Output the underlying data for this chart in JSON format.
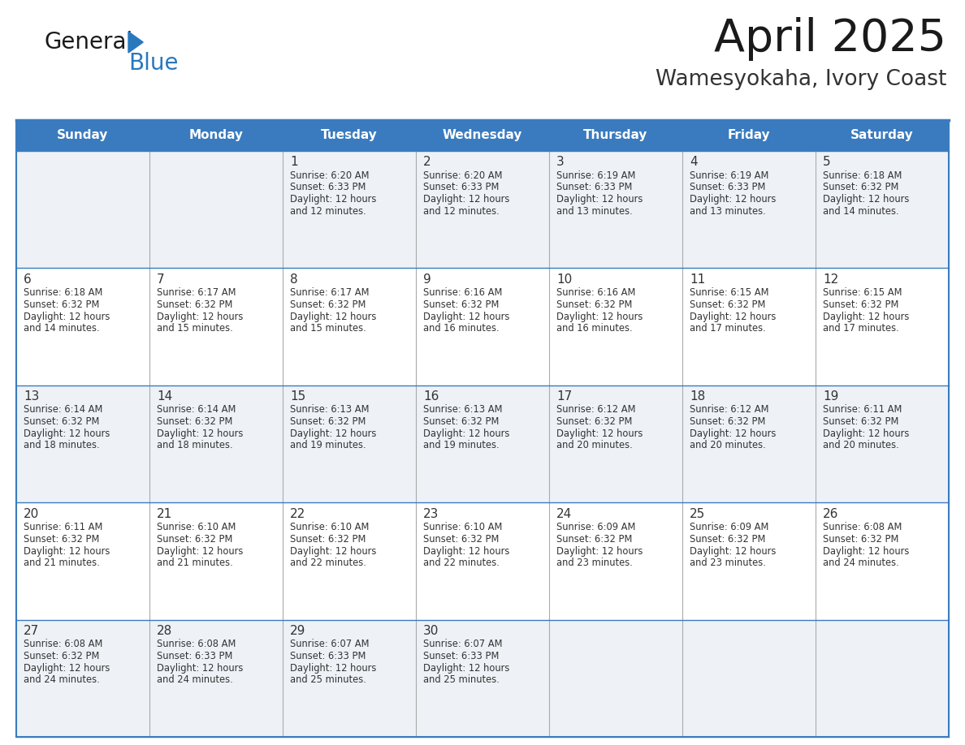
{
  "title": "April 2025",
  "subtitle": "Wamesyokaha, Ivory Coast",
  "days_of_week": [
    "Sunday",
    "Monday",
    "Tuesday",
    "Wednesday",
    "Thursday",
    "Friday",
    "Saturday"
  ],
  "header_bg": "#3a7bbf",
  "header_text": "#ffffff",
  "row_bg_even": "#eef2f7",
  "row_bg_odd": "#ffffff",
  "border_color": "#3a7bbf",
  "divider_color": "#aaaaaa",
  "text_color": "#333333",
  "calendar_data": [
    [
      {
        "day": "",
        "sunrise": "",
        "sunset": "",
        "daylight": ""
      },
      {
        "day": "",
        "sunrise": "",
        "sunset": "",
        "daylight": ""
      },
      {
        "day": "1",
        "sunrise": "6:20 AM",
        "sunset": "6:33 PM",
        "daylight": "12 hours and 12 minutes."
      },
      {
        "day": "2",
        "sunrise": "6:20 AM",
        "sunset": "6:33 PM",
        "daylight": "12 hours and 12 minutes."
      },
      {
        "day": "3",
        "sunrise": "6:19 AM",
        "sunset": "6:33 PM",
        "daylight": "12 hours and 13 minutes."
      },
      {
        "day": "4",
        "sunrise": "6:19 AM",
        "sunset": "6:33 PM",
        "daylight": "12 hours and 13 minutes."
      },
      {
        "day": "5",
        "sunrise": "6:18 AM",
        "sunset": "6:32 PM",
        "daylight": "12 hours and 14 minutes."
      }
    ],
    [
      {
        "day": "6",
        "sunrise": "6:18 AM",
        "sunset": "6:32 PM",
        "daylight": "12 hours and 14 minutes."
      },
      {
        "day": "7",
        "sunrise": "6:17 AM",
        "sunset": "6:32 PM",
        "daylight": "12 hours and 15 minutes."
      },
      {
        "day": "8",
        "sunrise": "6:17 AM",
        "sunset": "6:32 PM",
        "daylight": "12 hours and 15 minutes."
      },
      {
        "day": "9",
        "sunrise": "6:16 AM",
        "sunset": "6:32 PM",
        "daylight": "12 hours and 16 minutes."
      },
      {
        "day": "10",
        "sunrise": "6:16 AM",
        "sunset": "6:32 PM",
        "daylight": "12 hours and 16 minutes."
      },
      {
        "day": "11",
        "sunrise": "6:15 AM",
        "sunset": "6:32 PM",
        "daylight": "12 hours and 17 minutes."
      },
      {
        "day": "12",
        "sunrise": "6:15 AM",
        "sunset": "6:32 PM",
        "daylight": "12 hours and 17 minutes."
      }
    ],
    [
      {
        "day": "13",
        "sunrise": "6:14 AM",
        "sunset": "6:32 PM",
        "daylight": "12 hours and 18 minutes."
      },
      {
        "day": "14",
        "sunrise": "6:14 AM",
        "sunset": "6:32 PM",
        "daylight": "12 hours and 18 minutes."
      },
      {
        "day": "15",
        "sunrise": "6:13 AM",
        "sunset": "6:32 PM",
        "daylight": "12 hours and 19 minutes."
      },
      {
        "day": "16",
        "sunrise": "6:13 AM",
        "sunset": "6:32 PM",
        "daylight": "12 hours and 19 minutes."
      },
      {
        "day": "17",
        "sunrise": "6:12 AM",
        "sunset": "6:32 PM",
        "daylight": "12 hours and 20 minutes."
      },
      {
        "day": "18",
        "sunrise": "6:12 AM",
        "sunset": "6:32 PM",
        "daylight": "12 hours and 20 minutes."
      },
      {
        "day": "19",
        "sunrise": "6:11 AM",
        "sunset": "6:32 PM",
        "daylight": "12 hours and 20 minutes."
      }
    ],
    [
      {
        "day": "20",
        "sunrise": "6:11 AM",
        "sunset": "6:32 PM",
        "daylight": "12 hours and 21 minutes."
      },
      {
        "day": "21",
        "sunrise": "6:10 AM",
        "sunset": "6:32 PM",
        "daylight": "12 hours and 21 minutes."
      },
      {
        "day": "22",
        "sunrise": "6:10 AM",
        "sunset": "6:32 PM",
        "daylight": "12 hours and 22 minutes."
      },
      {
        "day": "23",
        "sunrise": "6:10 AM",
        "sunset": "6:32 PM",
        "daylight": "12 hours and 22 minutes."
      },
      {
        "day": "24",
        "sunrise": "6:09 AM",
        "sunset": "6:32 PM",
        "daylight": "12 hours and 23 minutes."
      },
      {
        "day": "25",
        "sunrise": "6:09 AM",
        "sunset": "6:32 PM",
        "daylight": "12 hours and 23 minutes."
      },
      {
        "day": "26",
        "sunrise": "6:08 AM",
        "sunset": "6:32 PM",
        "daylight": "12 hours and 24 minutes."
      }
    ],
    [
      {
        "day": "27",
        "sunrise": "6:08 AM",
        "sunset": "6:32 PM",
        "daylight": "12 hours and 24 minutes."
      },
      {
        "day": "28",
        "sunrise": "6:08 AM",
        "sunset": "6:33 PM",
        "daylight": "12 hours and 24 minutes."
      },
      {
        "day": "29",
        "sunrise": "6:07 AM",
        "sunset": "6:33 PM",
        "daylight": "12 hours and 25 minutes."
      },
      {
        "day": "30",
        "sunrise": "6:07 AM",
        "sunset": "6:33 PM",
        "daylight": "12 hours and 25 minutes."
      },
      {
        "day": "",
        "sunrise": "",
        "sunset": "",
        "daylight": ""
      },
      {
        "day": "",
        "sunrise": "",
        "sunset": "",
        "daylight": ""
      },
      {
        "day": "",
        "sunrise": "",
        "sunset": "",
        "daylight": ""
      }
    ]
  ],
  "logo_text1": "General",
  "logo_text2": "Blue",
  "logo_text1_color": "#1a1a1a",
  "logo_text2_color": "#2878be",
  "logo_triangle_color": "#2878be",
  "title_color": "#1a1a1a",
  "subtitle_color": "#333333"
}
